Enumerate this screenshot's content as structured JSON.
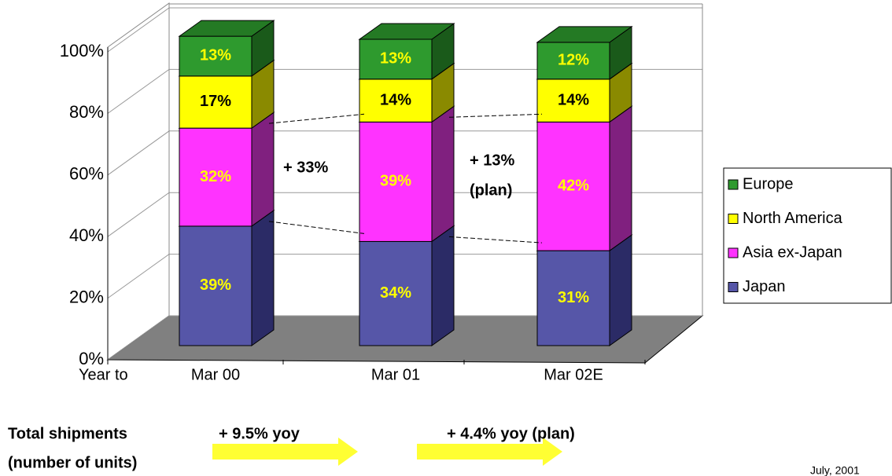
{
  "chart_data": {
    "type": "bar3d_stacked",
    "categories": [
      "Mar 00",
      "Mar 01",
      "Mar 02E"
    ],
    "series": [
      {
        "name": "Japan",
        "color": "#5656a8",
        "side_color": "#2b2b66",
        "top_color": "#7a7ac4",
        "label_color": "#ffff00",
        "values": [
          39,
          34,
          31
        ],
        "value_labels": [
          "39%",
          "34%",
          "31%"
        ]
      },
      {
        "name": "Asia ex-Japan",
        "color": "#ff33ff",
        "side_color": "#80207f",
        "top_color": "#ff88ff",
        "label_color": "#ffff00",
        "values": [
          32,
          39,
          42
        ],
        "value_labels": [
          "32%",
          "39%",
          "42%"
        ]
      },
      {
        "name": "North America",
        "color": "#ffff00",
        "side_color": "#8a8a00",
        "top_color": "#ffff88",
        "label_color": "#000000",
        "values": [
          17,
          14,
          14
        ],
        "value_labels": [
          "17%",
          "14%",
          "14%"
        ]
      },
      {
        "name": "Europe",
        "color": "#2e9a2e",
        "side_color": "#1a5a1a",
        "top_color": "#247a24",
        "label_color": "#ffff00",
        "values": [
          13,
          13,
          12
        ],
        "value_labels": [
          "13%",
          "13%",
          "12%"
        ]
      }
    ],
    "ylim": [
      0,
      100
    ],
    "yticks": [
      {
        "value": 0,
        "label": "0%"
      },
      {
        "value": 20,
        "label": "20%"
      },
      {
        "value": 40,
        "label": "40%"
      },
      {
        "value": 60,
        "label": "60%"
      },
      {
        "value": 80,
        "label": "80%"
      },
      {
        "value": 100,
        "label": "100%"
      }
    ],
    "grid": true,
    "x_axis_label": "Year to",
    "legend": "right",
    "growth_annotations": [
      "+ 33%",
      "+ 13%",
      "(plan)"
    ],
    "footer": {
      "label_lines": [
        "Total shipments",
        "(number of units)"
      ],
      "growth": [
        "+ 9.5% yoy",
        "+ 4.4% yoy (plan)"
      ],
      "date": "July, 2001"
    }
  }
}
